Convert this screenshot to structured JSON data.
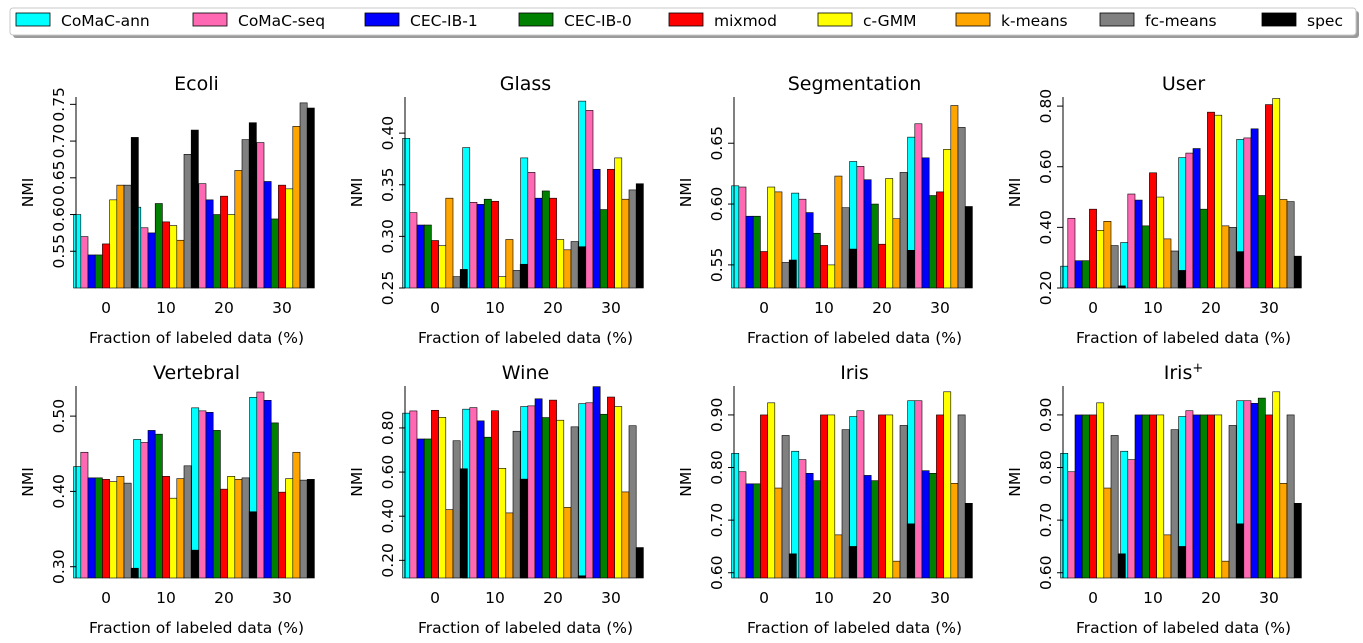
{
  "legend": {
    "placement": "top",
    "entries": [
      {
        "label": "CoMaC-ann",
        "color": "#00ffff"
      },
      {
        "label": "CoMaC-seq",
        "color": "#ff69b4"
      },
      {
        "label": "CEC-IB-1",
        "color": "#0000ff"
      },
      {
        "label": "CEC-IB-0",
        "color": "#008000"
      },
      {
        "label": "mixmod",
        "color": "#ff0000"
      },
      {
        "label": "c-GMM",
        "color": "#ffff00"
      },
      {
        "label": "k-means",
        "color": "#ffa500"
      },
      {
        "label": "fc-means",
        "color": "#808080"
      },
      {
        "label": "spec",
        "color": "#000000"
      }
    ]
  },
  "chart_data": [
    {
      "type": "bar",
      "title": "Ecoli",
      "xlabel": "Fraction of labeled data (%)",
      "ylabel": "NMI",
      "categories": [
        "0",
        "10",
        "20",
        "30"
      ],
      "ylim": [
        0.5,
        0.76
      ],
      "yticks": [
        0.55,
        0.6,
        0.65,
        0.7,
        0.75
      ],
      "yticklabels": [
        "0.55",
        "0.60",
        "0.65",
        "0.70",
        "0.75"
      ],
      "series": [
        {
          "name": "CoMaC-ann",
          "values": [
            0.6,
            0.61,
            0.64,
            0.68
          ]
        },
        {
          "name": "CoMaC-seq",
          "values": [
            0.57,
            0.582,
            0.642,
            0.698
          ]
        },
        {
          "name": "CEC-IB-1",
          "values": [
            0.545,
            0.575,
            0.62,
            0.645
          ]
        },
        {
          "name": "CEC-IB-0",
          "values": [
            0.545,
            0.615,
            0.6,
            0.594
          ]
        },
        {
          "name": "mixmod",
          "values": [
            0.56,
            0.59,
            0.625,
            0.64
          ]
        },
        {
          "name": "c-GMM",
          "values": [
            0.62,
            0.585,
            0.6,
            0.635
          ]
        },
        {
          "name": "k-means",
          "values": [
            0.64,
            0.565,
            0.66,
            0.72
          ]
        },
        {
          "name": "fc-means",
          "values": [
            0.64,
            0.682,
            0.702,
            0.752
          ]
        },
        {
          "name": "spec",
          "values": [
            0.705,
            0.715,
            0.725,
            0.745
          ]
        }
      ]
    },
    {
      "type": "bar",
      "title": "Glass",
      "xlabel": "Fraction of labeled data (%)",
      "ylabel": "NMI",
      "categories": [
        "0",
        "10",
        "20",
        "30"
      ],
      "ylim": [
        0.25,
        0.435
      ],
      "yticks": [
        0.25,
        0.3,
        0.35,
        0.4
      ],
      "yticklabels": [
        "0.25",
        "0.30",
        "0.35",
        "0.40"
      ],
      "series": [
        {
          "name": "CoMaC-ann",
          "values": [
            0.395,
            0.386,
            0.376,
            0.431
          ]
        },
        {
          "name": "CoMaC-seq",
          "values": [
            0.323,
            0.333,
            0.362,
            0.422
          ]
        },
        {
          "name": "CEC-IB-1",
          "values": [
            0.311,
            0.331,
            0.337,
            0.365
          ]
        },
        {
          "name": "CEC-IB-0",
          "values": [
            0.311,
            0.336,
            0.344,
            0.326
          ]
        },
        {
          "name": "mixmod",
          "values": [
            0.296,
            0.334,
            0.337,
            0.365
          ]
        },
        {
          "name": "c-GMM",
          "values": [
            0.291,
            0.261,
            0.297,
            0.376
          ]
        },
        {
          "name": "k-means",
          "values": [
            0.337,
            0.297,
            0.287,
            0.336
          ]
        },
        {
          "name": "fc-means",
          "values": [
            0.261,
            0.267,
            0.295,
            0.345
          ]
        },
        {
          "name": "spec",
          "values": [
            0.268,
            0.273,
            0.29,
            0.351
          ]
        }
      ]
    },
    {
      "type": "bar",
      "title": "Segmentation",
      "xlabel": "Fraction of labeled data (%)",
      "ylabel": "NMI",
      "categories": [
        "0",
        "10",
        "20",
        "30"
      ],
      "ylim": [
        0.531,
        0.688
      ],
      "yticks": [
        0.55,
        0.6,
        0.65
      ],
      "yticklabels": [
        "0.55",
        "0.60",
        "0.65"
      ],
      "series": [
        {
          "name": "CoMaC-ann",
          "values": [
            0.615,
            0.609,
            0.635,
            0.655
          ]
        },
        {
          "name": "CoMaC-seq",
          "values": [
            0.614,
            0.604,
            0.631,
            0.666
          ]
        },
        {
          "name": "CEC-IB-1",
          "values": [
            0.59,
            0.593,
            0.62,
            0.638
          ]
        },
        {
          "name": "CEC-IB-0",
          "values": [
            0.59,
            0.576,
            0.6,
            0.607
          ]
        },
        {
          "name": "mixmod",
          "values": [
            0.561,
            0.566,
            0.567,
            0.61
          ]
        },
        {
          "name": "c-GMM",
          "values": [
            0.614,
            0.55,
            0.621,
            0.645
          ]
        },
        {
          "name": "k-means",
          "values": [
            0.61,
            0.623,
            0.588,
            0.681
          ]
        },
        {
          "name": "fc-means",
          "values": [
            0.552,
            0.597,
            0.626,
            0.663
          ]
        },
        {
          "name": "spec",
          "values": [
            0.554,
            0.563,
            0.562,
            0.598
          ]
        }
      ]
    },
    {
      "type": "bar",
      "title": "User",
      "xlabel": "Fraction of labeled data (%)",
      "ylabel": "NMI",
      "categories": [
        "0",
        "10",
        "20",
        "30"
      ],
      "ylim": [
        0.2,
        0.83
      ],
      "yticks": [
        0.2,
        0.4,
        0.6,
        0.8
      ],
      "yticklabels": [
        "0.20",
        "0.40",
        "0.60",
        "0.80"
      ],
      "series": [
        {
          "name": "CoMaC-ann",
          "values": [
            0.272,
            0.35,
            0.63,
            0.69
          ]
        },
        {
          "name": "CoMaC-seq",
          "values": [
            0.43,
            0.51,
            0.645,
            0.695
          ]
        },
        {
          "name": "CEC-IB-1",
          "values": [
            0.29,
            0.49,
            0.66,
            0.725
          ]
        },
        {
          "name": "CEC-IB-0",
          "values": [
            0.29,
            0.405,
            0.46,
            0.505
          ]
        },
        {
          "name": "mixmod",
          "values": [
            0.46,
            0.58,
            0.78,
            0.805
          ]
        },
        {
          "name": "c-GMM",
          "values": [
            0.39,
            0.5,
            0.77,
            0.825
          ]
        },
        {
          "name": "k-means",
          "values": [
            0.42,
            0.362,
            0.405,
            0.492
          ]
        },
        {
          "name": "fc-means",
          "values": [
            0.34,
            0.322,
            0.4,
            0.485
          ]
        },
        {
          "name": "spec",
          "values": [
            0.207,
            0.258,
            0.32,
            0.305
          ]
        }
      ]
    },
    {
      "type": "bar",
      "title": "Vertebral",
      "xlabel": "Fraction of labeled data (%)",
      "ylabel": "NMI",
      "categories": [
        "0",
        "10",
        "20",
        "30"
      ],
      "ylim": [
        0.285,
        0.54
      ],
      "yticks": [
        0.3,
        0.4,
        0.5
      ],
      "yticklabels": [
        "0.30",
        "0.40",
        "0.50"
      ],
      "series": [
        {
          "name": "CoMaC-ann",
          "values": [
            0.433,
            0.469,
            0.511,
            0.525
          ]
        },
        {
          "name": "CoMaC-seq",
          "values": [
            0.452,
            0.465,
            0.507,
            0.532
          ]
        },
        {
          "name": "CEC-IB-1",
          "values": [
            0.418,
            0.481,
            0.505,
            0.521
          ]
        },
        {
          "name": "CEC-IB-0",
          "values": [
            0.418,
            0.476,
            0.481,
            0.491
          ]
        },
        {
          "name": "mixmod",
          "values": [
            0.416,
            0.42,
            0.403,
            0.399
          ]
        },
        {
          "name": "c-GMM",
          "values": [
            0.413,
            0.391,
            0.42,
            0.417
          ]
        },
        {
          "name": "k-means",
          "values": [
            0.42,
            0.417,
            0.416,
            0.452
          ]
        },
        {
          "name": "fc-means",
          "values": [
            0.411,
            0.434,
            0.418,
            0.415
          ]
        },
        {
          "name": "spec",
          "values": [
            0.298,
            0.322,
            0.373,
            0.416
          ]
        }
      ]
    },
    {
      "type": "bar",
      "title": "Wine",
      "xlabel": "Fraction of labeled data (%)",
      "ylabel": "NMI",
      "categories": [
        "0",
        "10",
        "20",
        "30"
      ],
      "ylim": [
        0.12,
        0.99
      ],
      "yticks": [
        0.2,
        0.4,
        0.6,
        0.8
      ],
      "yticklabels": [
        "0.20",
        "0.40",
        "0.60",
        "0.80"
      ],
      "series": [
        {
          "name": "CoMaC-ann",
          "values": [
            0.867,
            0.885,
            0.897,
            0.91
          ]
        },
        {
          "name": "CoMaC-seq",
          "values": [
            0.877,
            0.892,
            0.9,
            0.914
          ]
        },
        {
          "name": "CEC-IB-1",
          "values": [
            0.75,
            0.832,
            0.932,
            0.987
          ]
        },
        {
          "name": "CEC-IB-0",
          "values": [
            0.75,
            0.758,
            0.847,
            0.862
          ]
        },
        {
          "name": "mixmod",
          "values": [
            0.88,
            0.878,
            0.926,
            0.94
          ]
        },
        {
          "name": "c-GMM",
          "values": [
            0.848,
            0.617,
            0.835,
            0.897
          ]
        },
        {
          "name": "k-means",
          "values": [
            0.43,
            0.415,
            0.44,
            0.51
          ]
        },
        {
          "name": "fc-means",
          "values": [
            0.742,
            0.785,
            0.805,
            0.81
          ]
        },
        {
          "name": "spec",
          "values": [
            0.615,
            0.568,
            0.13,
            0.258
          ]
        }
      ]
    },
    {
      "type": "bar",
      "title": "Iris",
      "xlabel": "Fraction of labeled data (%)",
      "ylabel": "NMI",
      "categories": [
        "0",
        "10",
        "20",
        "30"
      ],
      "ylim": [
        0.59,
        0.955
      ],
      "yticks": [
        0.6,
        0.7,
        0.8,
        0.9
      ],
      "yticklabels": [
        "0.60",
        "0.70",
        "0.80",
        "0.90"
      ],
      "series": [
        {
          "name": "CoMaC-ann",
          "values": [
            0.827,
            0.831,
            0.897,
            0.927
          ]
        },
        {
          "name": "CoMaC-seq",
          "values": [
            0.792,
            0.815,
            0.908,
            0.927
          ]
        },
        {
          "name": "CEC-IB-1",
          "values": [
            0.769,
            0.789,
            0.785,
            0.794
          ]
        },
        {
          "name": "CEC-IB-0",
          "values": [
            0.769,
            0.775,
            0.775,
            0.789
          ]
        },
        {
          "name": "mixmod",
          "values": [
            0.9,
            0.9,
            0.9,
            0.9
          ]
        },
        {
          "name": "c-GMM",
          "values": [
            0.923,
            0.9,
            0.9,
            0.944
          ]
        },
        {
          "name": "k-means",
          "values": [
            0.761,
            0.672,
            0.622,
            0.77
          ]
        },
        {
          "name": "fc-means",
          "values": [
            0.861,
            0.872,
            0.88,
            0.9
          ]
        },
        {
          "name": "spec",
          "values": [
            0.636,
            0.65,
            0.693,
            0.732
          ]
        }
      ]
    },
    {
      "type": "bar",
      "title": "Iris",
      "title_sup": "+",
      "xlabel": "Fraction of labeled data (%)",
      "ylabel": "NMI",
      "categories": [
        "0",
        "10",
        "20",
        "30"
      ],
      "ylim": [
        0.59,
        0.955
      ],
      "yticks": [
        0.6,
        0.7,
        0.8,
        0.9
      ],
      "yticklabels": [
        "0.60",
        "0.70",
        "0.80",
        "0.90"
      ],
      "series": [
        {
          "name": "CoMaC-ann",
          "values": [
            0.827,
            0.831,
            0.897,
            0.927
          ]
        },
        {
          "name": "CoMaC-seq",
          "values": [
            0.792,
            0.815,
            0.908,
            0.927
          ]
        },
        {
          "name": "CEC-IB-1",
          "values": [
            0.9,
            0.9,
            0.9,
            0.922
          ]
        },
        {
          "name": "CEC-IB-0",
          "values": [
            0.9,
            0.9,
            0.9,
            0.932
          ]
        },
        {
          "name": "mixmod",
          "values": [
            0.9,
            0.9,
            0.9,
            0.9
          ]
        },
        {
          "name": "c-GMM",
          "values": [
            0.923,
            0.9,
            0.9,
            0.944
          ]
        },
        {
          "name": "k-means",
          "values": [
            0.761,
            0.672,
            0.622,
            0.77
          ]
        },
        {
          "name": "fc-means",
          "values": [
            0.861,
            0.872,
            0.88,
            0.9
          ]
        },
        {
          "name": "spec",
          "values": [
            0.636,
            0.65,
            0.693,
            0.732
          ]
        }
      ]
    }
  ]
}
